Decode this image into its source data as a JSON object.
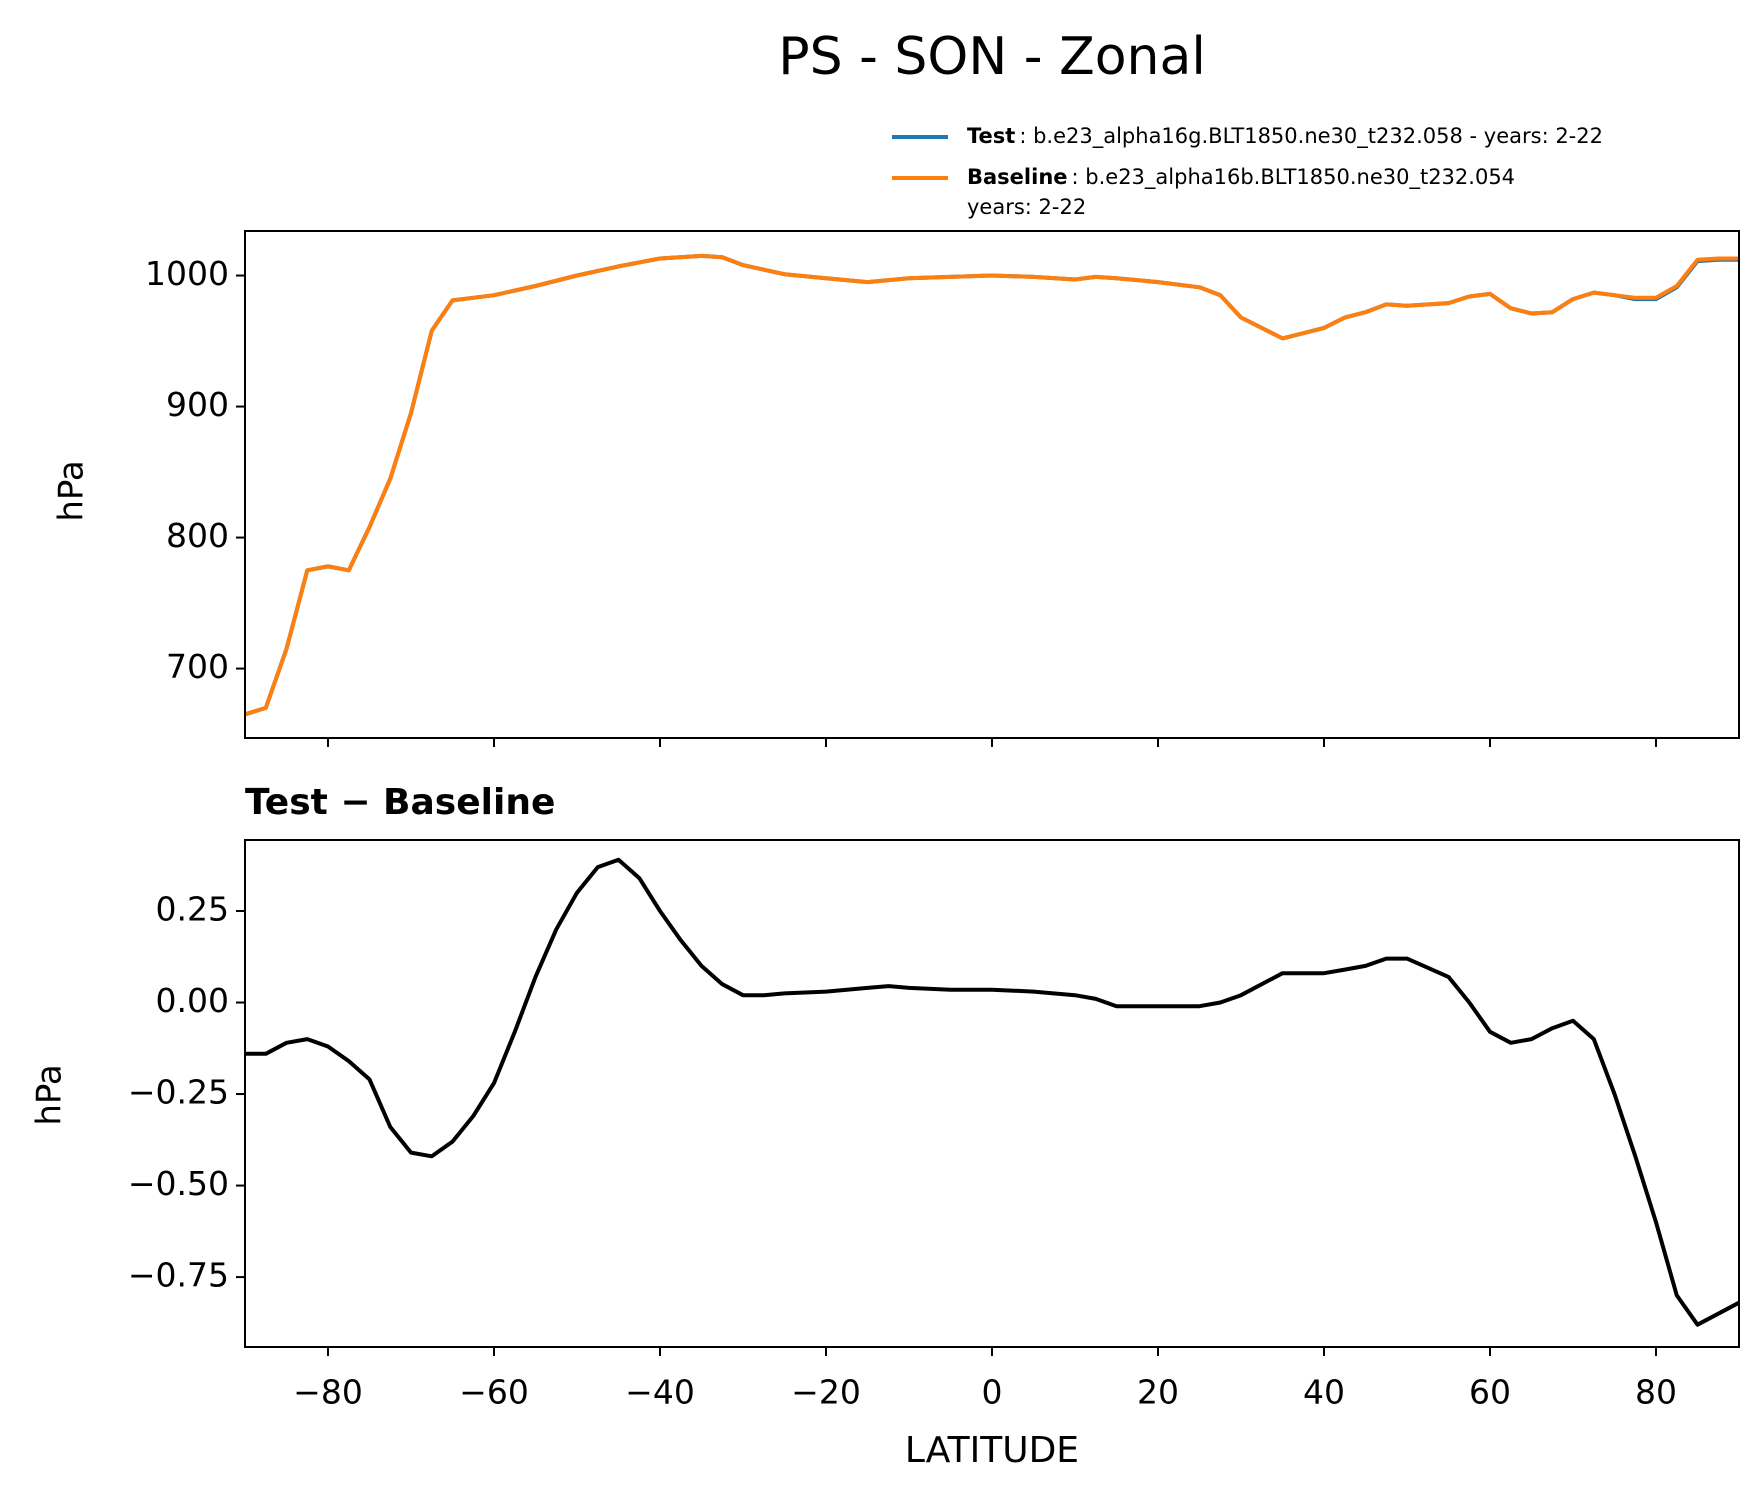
{
  "chart_data": [
    {
      "type": "line",
      "title": "PS - SON - Zonal",
      "ylabel": "hPa",
      "xlim": [
        -90,
        90
      ],
      "xticks": [
        -80,
        -60,
        -40,
        -20,
        0,
        20,
        40,
        60,
        80
      ],
      "ylim": [
        647,
        1034
      ],
      "yticks": [
        700,
        800,
        900,
        1000
      ],
      "x": [
        -90,
        -87.5,
        -85,
        -82.5,
        -80,
        -77.5,
        -75,
        -72.5,
        -70,
        -67.5,
        -65,
        -62.5,
        -60,
        -55,
        -50,
        -45,
        -40,
        -35,
        -32.5,
        -30,
        -25,
        -20,
        -15,
        -10,
        -5,
        0,
        5,
        10,
        12.5,
        15,
        20,
        25,
        27.5,
        30,
        35,
        40,
        42.5,
        45,
        47.5,
        50,
        55,
        57.5,
        60,
        62.5,
        65,
        67.5,
        70,
        72.5,
        75,
        77.5,
        80,
        82.5,
        85,
        87.5,
        90
      ],
      "series": [
        {
          "name": "Test",
          "detail": [
            ": b.e23_alpha16g.BLT1850.ne30_t232.058 - years: 2-22"
          ],
          "color": "#1f77b4",
          "values": [
            665,
            670,
            715,
            775,
            778,
            775,
            808,
            845,
            895,
            958,
            981,
            983,
            985,
            992,
            1000,
            1007,
            1013,
            1015,
            1014,
            1008,
            1001,
            998,
            995,
            998,
            999,
            1000,
            999,
            997,
            999,
            998,
            995,
            991,
            985,
            968,
            952,
            960,
            968,
            972,
            978,
            977,
            979,
            984,
            986,
            975,
            971,
            972,
            982,
            987,
            985,
            982,
            982,
            991,
            1011,
            1012,
            1012
          ]
        },
        {
          "name": "Baseline",
          "detail": [
            ": b.e23_alpha16b.BLT1850.ne30_t232.054",
            "years: 2-22"
          ],
          "color": "#ff7f0e",
          "values": [
            665,
            670,
            715,
            775,
            778,
            775,
            808,
            845,
            895,
            958,
            981,
            983,
            985,
            992,
            1000,
            1007,
            1013,
            1015,
            1014,
            1008,
            1001,
            998,
            995,
            998,
            999,
            1000,
            999,
            997,
            999,
            998,
            995,
            991,
            985,
            968,
            952,
            960,
            968,
            972,
            978,
            977,
            979,
            984,
            986,
            975,
            971,
            972,
            982,
            987,
            985,
            983,
            983,
            992,
            1012,
            1013,
            1013
          ]
        }
      ]
    },
    {
      "type": "line",
      "title": "Test − Baseline",
      "ylabel": "hPa",
      "xlabel": "LATITUDE",
      "xlim": [
        -90,
        90
      ],
      "xticks": [
        {
          "value": -80,
          "label": "−80"
        },
        {
          "value": -60,
          "label": "−60"
        },
        {
          "value": -40,
          "label": "−40"
        },
        {
          "value": -20,
          "label": "−20"
        },
        0,
        20,
        40,
        60,
        80
      ],
      "ylim": [
        -0.941,
        0.444
      ],
      "yticks": [
        0.25,
        {
          "value": 0,
          "label": "0.00"
        },
        {
          "value": -0.25,
          "label": "−0.25"
        },
        {
          "value": -0.5,
          "label": "−0.50"
        },
        {
          "value": -0.75,
          "label": "−0.75"
        }
      ],
      "x": [
        -90,
        -87.5,
        -85,
        -82.5,
        -80,
        -77.5,
        -75,
        -72.5,
        -70,
        -67.5,
        -65,
        -62.5,
        -60,
        -57.5,
        -55,
        -52.5,
        -50,
        -47.5,
        -45,
        -42.5,
        -40,
        -37.5,
        -35,
        -32.5,
        -30,
        -27.5,
        -25,
        -20,
        -15,
        -12.5,
        -10,
        -5,
        0,
        5,
        10,
        12.5,
        15,
        20,
        25,
        27.5,
        30,
        35,
        40,
        42.5,
        45,
        47.5,
        50,
        55,
        57.5,
        60,
        62.5,
        65,
        67.5,
        70,
        72.5,
        75,
        77.5,
        80,
        82.5,
        85,
        87.5,
        90
      ],
      "series": [
        {
          "color": "#000000",
          "values": [
            -0.14,
            -0.14,
            -0.11,
            -0.1,
            -0.12,
            -0.16,
            -0.21,
            -0.34,
            -0.41,
            -0.42,
            -0.38,
            -0.31,
            -0.22,
            -0.08,
            0.07,
            0.2,
            0.3,
            0.37,
            0.39,
            0.34,
            0.25,
            0.17,
            0.1,
            0.05,
            0.02,
            0.02,
            0.025,
            0.03,
            0.04,
            0.045,
            0.04,
            0.035,
            0.035,
            0.03,
            0.02,
            0.01,
            -0.01,
            -0.01,
            -0.01,
            0.0,
            0.02,
            0.08,
            0.08,
            0.09,
            0.1,
            0.12,
            0.12,
            0.07,
            0.0,
            -0.08,
            -0.11,
            -0.1,
            -0.07,
            -0.05,
            -0.1,
            -0.25,
            -0.42,
            -0.6,
            -0.8,
            -0.88,
            -0.85,
            -0.82
          ]
        }
      ]
    }
  ]
}
